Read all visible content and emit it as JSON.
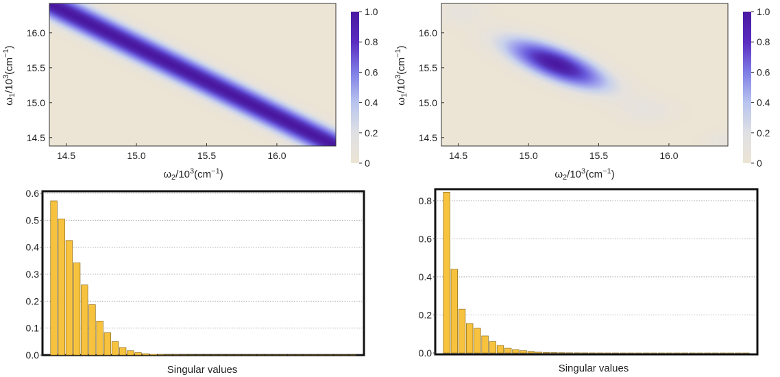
{
  "chart_data": [
    {
      "type": "heatmap",
      "name": "heatmap-left",
      "x": {
        "label": "ω2/10³(cm⁻¹)",
        "ticks": [
          "14.5",
          "15.0",
          "15.5",
          "16.0"
        ],
        "tick_values": [
          14.5,
          15.0,
          15.5,
          16.0
        ],
        "range": [
          14.38,
          16.42
        ]
      },
      "y": {
        "label": "ω1/10³(cm⁻¹)",
        "ticks": [
          "14.5",
          "15.0",
          "15.5",
          "16.0"
        ],
        "tick_values": [
          14.5,
          15.0,
          15.5,
          16.0
        ],
        "range": [
          14.38,
          16.42
        ]
      },
      "colorbar": {
        "ticks": [
          "0",
          "0.2",
          "0.4",
          "0.6",
          "0.8",
          "1.0"
        ],
        "range": [
          0,
          1
        ]
      },
      "description_model": {
        "kind": "anti-diagonal-band",
        "center_sum": 30.8,
        "width": 0.17
      }
    },
    {
      "type": "heatmap",
      "name": "heatmap-right",
      "x": {
        "label": "ω2/10³(cm⁻¹)",
        "ticks": [
          "14.5",
          "15.0",
          "15.5",
          "16.0"
        ],
        "tick_values": [
          14.5,
          15.0,
          15.5,
          16.0
        ],
        "range": [
          14.38,
          16.42
        ]
      },
      "y": {
        "label": "ω1/10³(cm⁻¹)",
        "ticks": [
          "14.5",
          "15.0",
          "15.5",
          "16.0"
        ],
        "tick_values": [
          14.5,
          15.0,
          15.5,
          16.0
        ],
        "range": [
          14.38,
          16.42
        ]
      },
      "colorbar": {
        "ticks": [
          "0",
          "0.2",
          "0.4",
          "0.6",
          "0.8",
          "1.0"
        ],
        "range": [
          0,
          1
        ]
      },
      "description_model": {
        "kind": "anti-diagonal-lobes",
        "main_center": [
          15.2,
          15.55
        ],
        "main_amplitude": 1.0,
        "side_amplitude": 0.12
      }
    },
    {
      "type": "bar",
      "name": "singular-values-left",
      "xlabel": "Singular values",
      "ylim": [
        0,
        0.6
      ],
      "yticks": [
        "0.0",
        "0.1",
        "0.2",
        "0.3",
        "0.4",
        "0.5",
        "0.6"
      ],
      "ytick_values": [
        0,
        0.1,
        0.2,
        0.3,
        0.4,
        0.5,
        0.6
      ],
      "values": [
        0.572,
        0.505,
        0.425,
        0.342,
        0.26,
        0.187,
        0.126,
        0.083,
        0.05,
        0.028,
        0.016,
        0.009,
        0.005,
        0.003,
        0.002,
        0.001,
        0.001,
        0.0005,
        0.0003,
        0.0002,
        0.0001,
        0.0001,
        0.0001,
        0.0001,
        0.0001,
        0.0001,
        0.0001,
        0.0001,
        0.0001,
        0.0001,
        0.0001,
        0.0001,
        0.0001,
        0.0001,
        0.0001,
        0.0001,
        0.0001,
        0.0001,
        0.0001,
        0.0001
      ]
    },
    {
      "type": "bar",
      "name": "singular-values-right",
      "xlabel": "Singular values",
      "ylim": [
        0,
        0.85
      ],
      "yticks": [
        "0.0",
        "0.2",
        "0.4",
        "0.6",
        "0.8"
      ],
      "ytick_values": [
        0,
        0.2,
        0.4,
        0.6,
        0.8
      ],
      "values": [
        0.845,
        0.44,
        0.23,
        0.155,
        0.13,
        0.09,
        0.06,
        0.04,
        0.025,
        0.018,
        0.012,
        0.008,
        0.005,
        0.003,
        0.002,
        0.0015,
        0.001,
        0.0008,
        0.0006,
        0.0004,
        0.0003,
        0.0002,
        0.0002,
        0.0001,
        0.0001,
        0.0001,
        0.0001,
        0.0001,
        0.0001,
        0.0001,
        0.0001,
        0.0001,
        0.0001,
        0.0001,
        0.0001,
        0.0001,
        0.0001,
        0.0001,
        0.0001,
        0.0001
      ]
    }
  ],
  "colors": {
    "bar_fill": "#f7c23e",
    "bar_stroke": "#8a6a1a",
    "grid": "#9a9a9a",
    "cmap": [
      "#ece4d4",
      "#cfd8e8",
      "#6c6ae0",
      "#4a18a0"
    ]
  }
}
